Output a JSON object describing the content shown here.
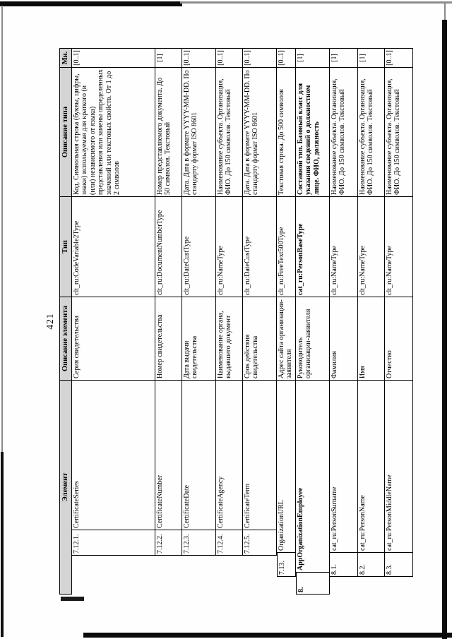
{
  "page": {
    "number": "421"
  },
  "table": {
    "headers": {
      "element": "Элемент",
      "element_description": "Описание элемента",
      "type": "Тип",
      "type_description": "Описание типа",
      "multiplicity": "Мн."
    },
    "rows": [
      {
        "num": "7.12.1.",
        "element": "CertificateSeries",
        "element_description": "Серия свидетельства",
        "type": "clt_ru:CodeVariable2Type",
        "type_description": "Код. Символьная строка (буквы, цифры, знаки) используемая для краткого (и (или) независимого от языка) представления или замены определенных значений или текстовых свойств. От 1 до 2 символов",
        "multiplicity": "[0..1]"
      },
      {
        "num": "7.12.2.",
        "element": "CertificateNumber",
        "element_description": "Номер свидетельства",
        "type": "clt_ru:DocumentNumberType",
        "type_description": "Номер представляемого документа. До 50 символов. Текстовый",
        "multiplicity": "[1]"
      },
      {
        "num": "7.12.3.",
        "element": "CertificateDate",
        "element_description": "Дата выдачи свидетельства",
        "type": "clt_ru:DateCustType",
        "type_description": "Дата. Дата в формате YYYY-MM-DD. По стандарту формат ISO 8601",
        "multiplicity": "[0..1]"
      },
      {
        "num": "7.12.4.",
        "element": "CertificateAgency",
        "element_description": "Наименование органа, выдавшего документ",
        "type": "clt_ru:NameType",
        "type_description": "Наименование субъекта. Организация, ФИО. До 150 символов. Текстовый",
        "multiplicity": "[0..1]"
      },
      {
        "num": "7.12.5.",
        "element": "CertificateTerm",
        "element_description": "Срок действия свидетельства",
        "type": "clt_ru:DateCustType",
        "type_description": "Дата. Дата в формате YYYY-MM-DD. По стандарту формат ISO 8601",
        "multiplicity": "[0..1]"
      },
      {
        "num": "7.13.",
        "element": "OrganizationURL",
        "element_description": "Адрес сайта организации-заявителя",
        "type": "clt_ru:FreeText500Type",
        "type_description": "Текстовая строка. До 500 символов",
        "multiplicity": "[0..1]"
      },
      {
        "num": "8.",
        "element": "AppOrganizationEmployee",
        "element_description": "Руководитель организации-заявителя",
        "type": "cat_ru:PersonBaseType",
        "type_description": "Составной тип. Базовый класс для указания сведений о должностном лице. ФИО, должность",
        "multiplicity": "[1]"
      },
      {
        "num": "8.1.",
        "element": "cat_ru:PersonSurname",
        "element_description": "Фамилия",
        "type": "clt_ru:NameType",
        "type_description": "Наименование субъекта. Организация, ФИО. До 150 символов. Текстовый",
        "multiplicity": "[1]"
      },
      {
        "num": "8.2.",
        "element": "cat_ru:PersonName",
        "element_description": "Имя",
        "type": "clt_ru:NameType",
        "type_description": "Наименование субъекта. Организация, ФИО. До 150 символов. Текстовый",
        "multiplicity": "[1]"
      },
      {
        "num": "8.3.",
        "element": "cat_ru:PersonMiddleName",
        "element_description": "Отчество",
        "type": "clt_ru:NameType",
        "type_description": "Наименование субъекта. Организация, ФИО. До 150 символов. Текстовый",
        "multiplicity": "[0..1]"
      }
    ]
  }
}
